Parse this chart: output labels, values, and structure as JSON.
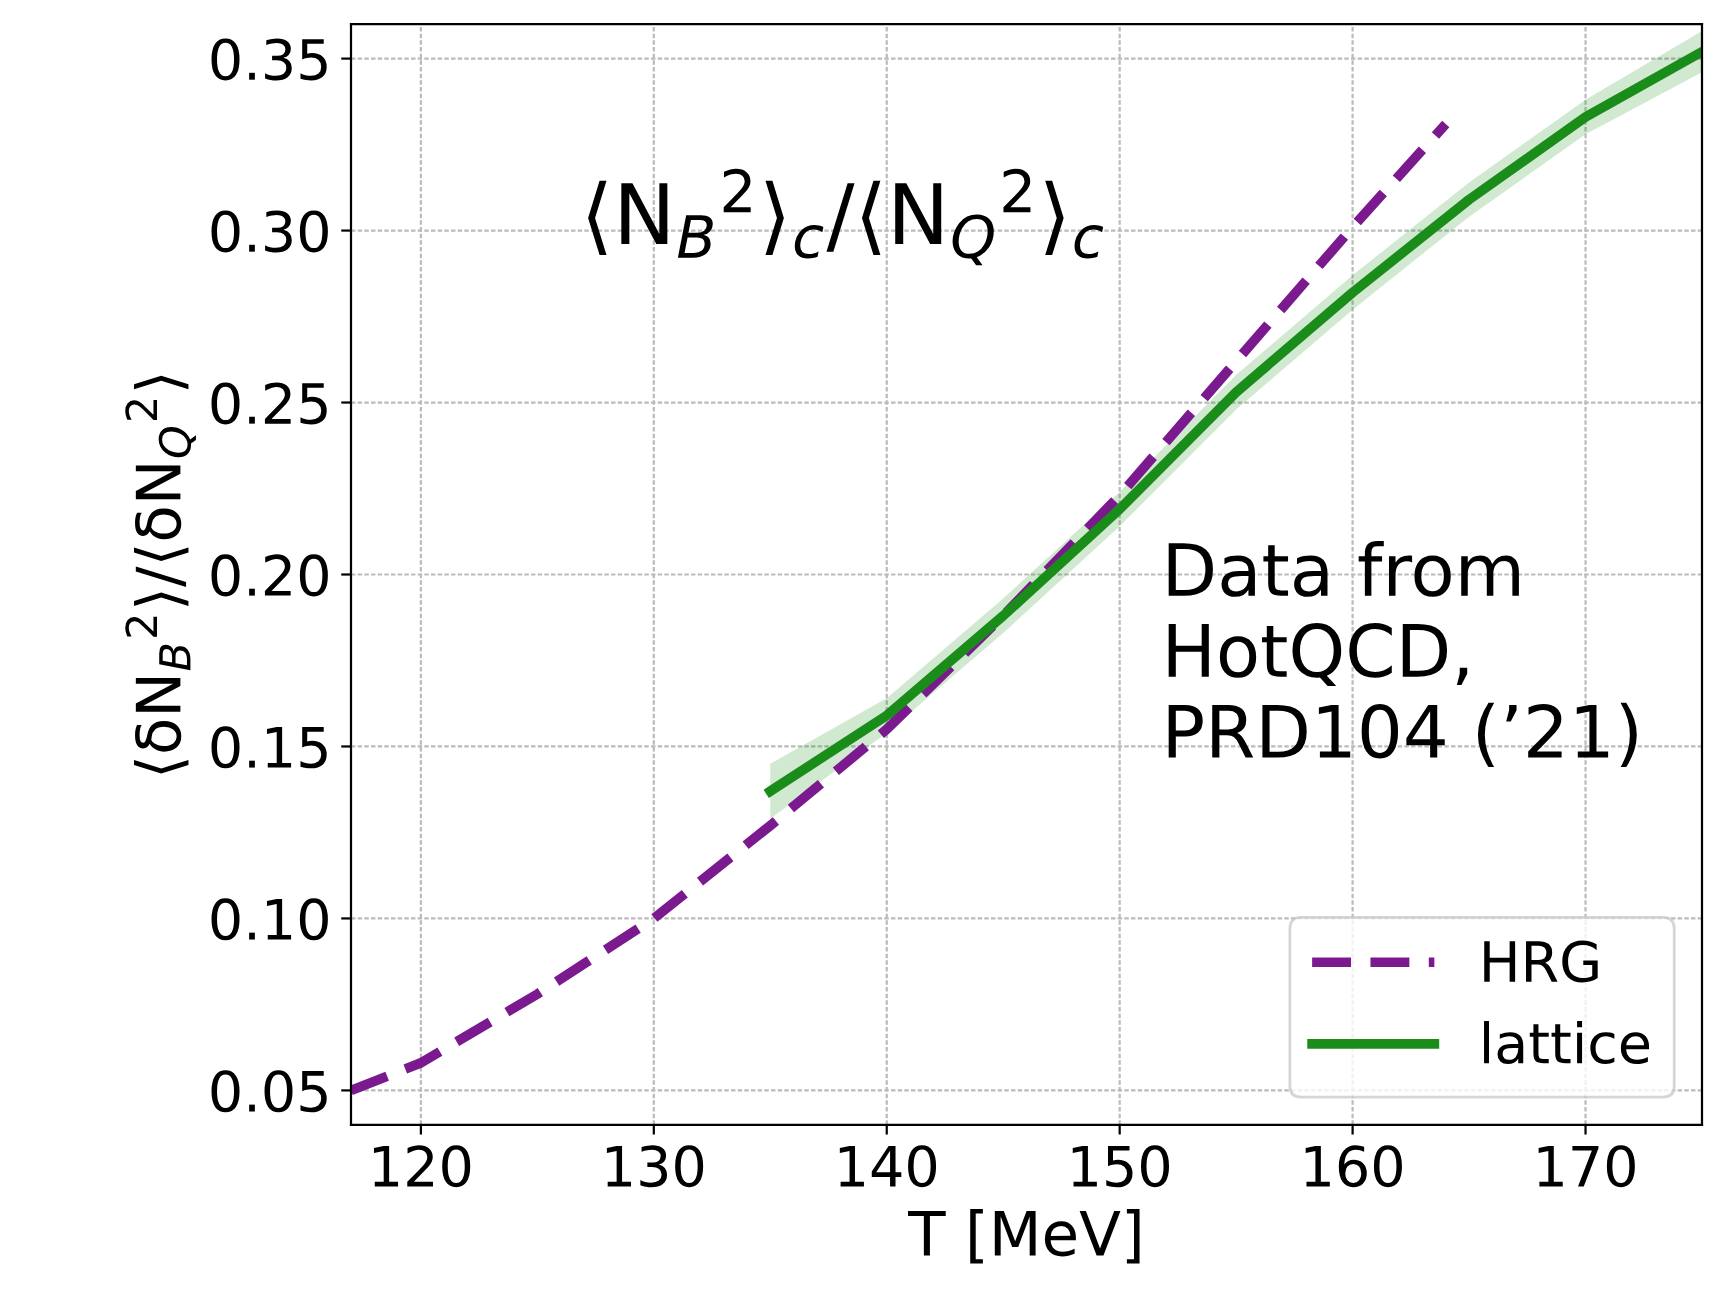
{
  "chart_data": {
    "type": "line",
    "xlabel": "T [MeV]",
    "ylabel": "⟨δN$_{B}$$^{2}$⟩/⟨δN$_{Q}$$^{2}$⟩",
    "annotations": [
      "⟨N$_{B}$$^{2}$⟩$_{c}$/⟨N$_{Q}$$^{2}$⟩$_{c}$",
      "Data from\nHotQCD,\nPRD104 (’21)"
    ],
    "series": [
      {
        "name": "HRG",
        "color": "#7b1a8f",
        "line_style": "dashed",
        "x": [
          117,
          120,
          125,
          130,
          135,
          140,
          145,
          150,
          155,
          160,
          164
        ],
        "values": [
          0.05,
          0.058,
          0.078,
          0.1,
          0.127,
          0.155,
          0.188,
          0.223,
          0.262,
          0.301,
          0.331
        ]
      },
      {
        "name": "lattice",
        "color": "#1a8c1a",
        "line_style": "solid",
        "x": [
          135,
          140,
          145,
          150,
          155,
          160,
          165,
          170,
          175
        ],
        "values": [
          0.137,
          0.159,
          0.188,
          0.219,
          0.253,
          0.282,
          0.309,
          0.333,
          0.352
        ],
        "lower": [
          0.129,
          0.154,
          0.183,
          0.214,
          0.248,
          0.277,
          0.304,
          0.328,
          0.346
        ],
        "upper": [
          0.145,
          0.164,
          0.193,
          0.224,
          0.258,
          0.287,
          0.314,
          0.338,
          0.358
        ]
      }
    ],
    "xlim": [
      117,
      175
    ],
    "ylim": [
      0.04,
      0.36
    ],
    "xticks": [
      120,
      130,
      140,
      150,
      160,
      170
    ],
    "yticks": [
      {
        "value": 0.05,
        "label": "0.05"
      },
      {
        "value": 0.1,
        "label": "0.10"
      },
      {
        "value": 0.15,
        "label": "0.15"
      },
      {
        "value": 0.2,
        "label": "0.20"
      },
      {
        "value": 0.25,
        "label": "0.25"
      },
      {
        "value": 0.3,
        "label": "0.30"
      },
      {
        "value": 0.35,
        "label": "0.35"
      }
    ],
    "grid": true,
    "legend": "lower right",
    "marker": "none"
  }
}
